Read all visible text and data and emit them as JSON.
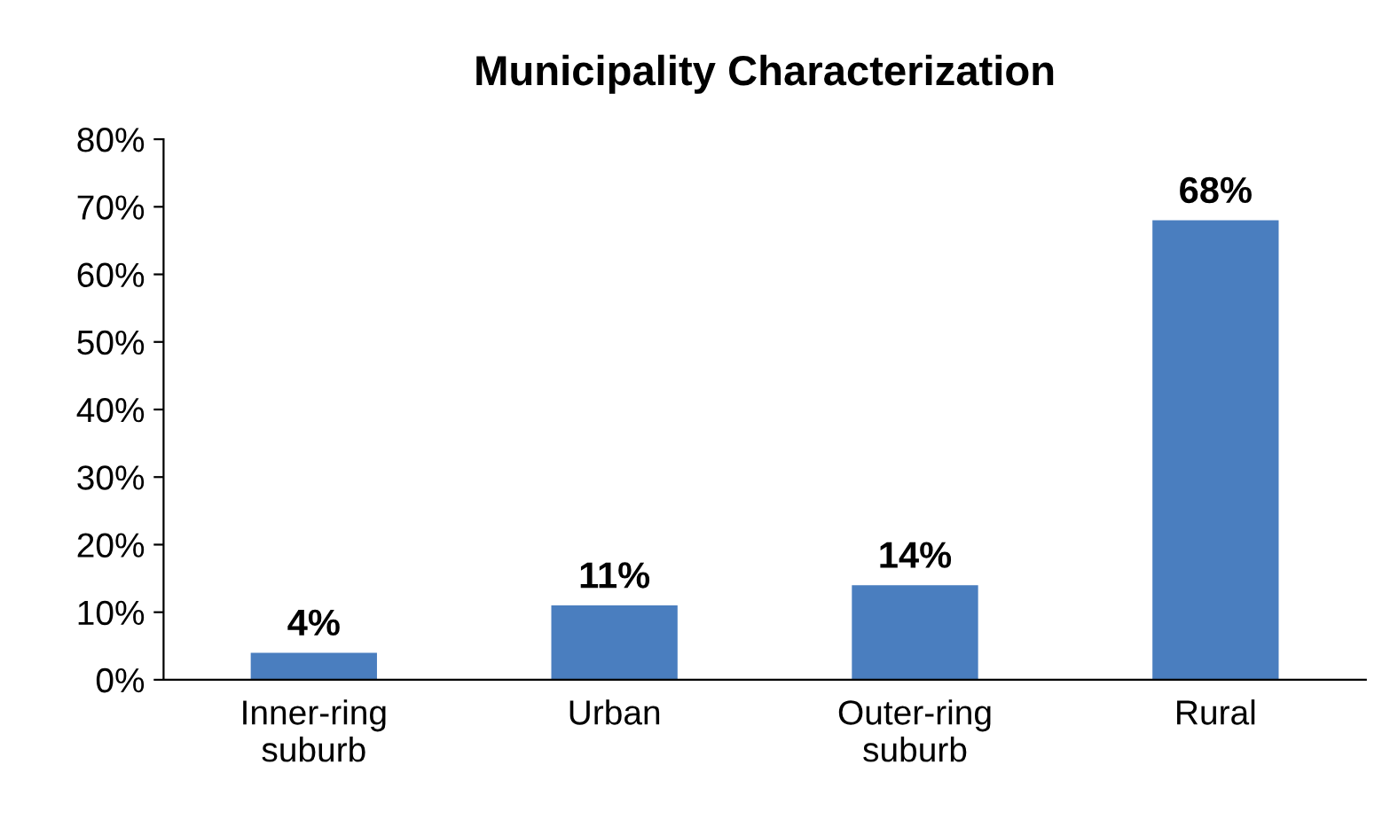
{
  "chart_data": {
    "type": "bar",
    "title": "Municipality Characterization",
    "categories": [
      "Inner-ring\nsuburb",
      "Urban",
      "Outer-ring\nsuburb",
      "Rural"
    ],
    "values": [
      4,
      11,
      14,
      68
    ],
    "color": "#4a7ebf",
    "value_labels": [
      "4%",
      "11%",
      "14%",
      "68%"
    ],
    "ylim": [
      0,
      80
    ],
    "yticks": [
      {
        "value": 0,
        "label": "0%"
      },
      {
        "value": 10,
        "label": "10%"
      },
      {
        "value": 20,
        "label": "20%"
      },
      {
        "value": 30,
        "label": "30%"
      },
      {
        "value": 40,
        "label": "40%"
      },
      {
        "value": 50,
        "label": "50%"
      },
      {
        "value": 60,
        "label": "60%"
      },
      {
        "value": 70,
        "label": "70%"
      },
      {
        "value": 80,
        "label": "80%"
      }
    ],
    "grid": false,
    "legend": false
  }
}
